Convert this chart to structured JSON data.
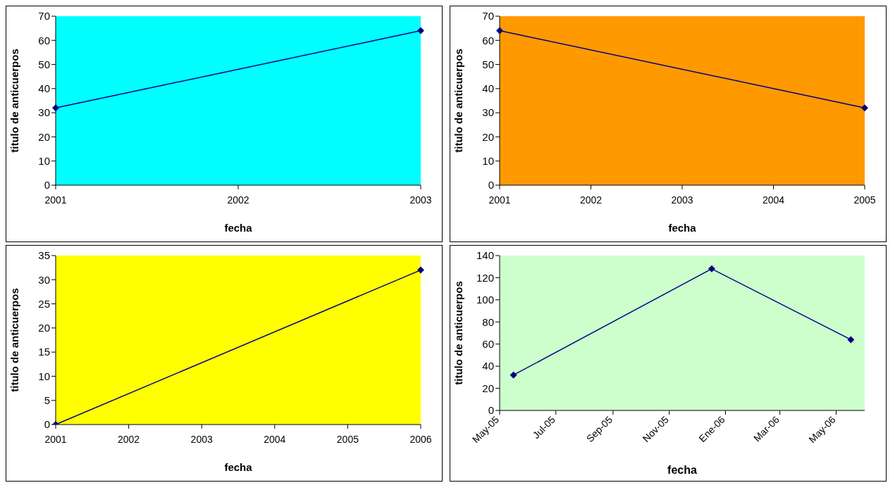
{
  "chart_data": [
    {
      "type": "line",
      "xlabel": "fecha",
      "ylabel": "titulo de anticuerpos",
      "categories": [
        "2001",
        "2002",
        "2003"
      ],
      "series": [
        {
          "color": "#000080",
          "values": [
            32,
            null,
            64
          ]
        }
      ],
      "ylim": [
        0,
        70
      ],
      "yticks": [
        0,
        10,
        20,
        30,
        40,
        50,
        60,
        70
      ],
      "marker": "diamond",
      "line_style": "solid"
    },
    {
      "type": "line",
      "xlabel": "fecha",
      "ylabel": "titulo de anticuerpos",
      "categories": [
        "2001",
        "2002",
        "2003",
        "2004",
        "2005"
      ],
      "series": [
        {
          "color": "#000080",
          "values": [
            64,
            null,
            null,
            null,
            32
          ]
        }
      ],
      "ylim": [
        0,
        70
      ],
      "yticks": [
        0,
        10,
        20,
        30,
        40,
        50,
        60,
        70
      ],
      "marker": "diamond",
      "line_style": "solid"
    },
    {
      "type": "line",
      "xlabel": "fecha",
      "ylabel": "titulo de anticuerpos",
      "categories": [
        "2001",
        "2002",
        "2003",
        "2004",
        "2005",
        "2006"
      ],
      "series": [
        {
          "color": "#000080",
          "values": [
            0,
            null,
            null,
            null,
            null,
            32
          ]
        }
      ],
      "ylim": [
        0,
        35
      ],
      "yticks": [
        0,
        5,
        10,
        15,
        20,
        25,
        30,
        35
      ],
      "marker": "diamond",
      "line_style": "solid"
    },
    {
      "type": "line",
      "xlabel": "fecha",
      "ylabel": "titulo de anticuerpos",
      "x": [
        "2005-05-16",
        "2005-12-17",
        "2006-05-17"
      ],
      "series": [
        {
          "color": "#000080",
          "values": [
            32,
            128,
            64
          ]
        }
      ],
      "xlim": [
        "2005-05-01",
        "2006-06-01"
      ],
      "xticks": [
        {
          "value": "2005-05-01",
          "label": "May-05"
        },
        {
          "value": "2005-07-01",
          "label": "Jul-05"
        },
        {
          "value": "2005-09-01",
          "label": "Sep-05"
        },
        {
          "value": "2005-11-01",
          "label": "Nov-05"
        },
        {
          "value": "2006-01-01",
          "label": "Ene-06"
        },
        {
          "value": "2006-03-01",
          "label": "Mar-06"
        },
        {
          "value": "2006-05-01",
          "label": "May-06"
        }
      ],
      "ylim": [
        0,
        140
      ],
      "yticks": [
        0,
        20,
        40,
        60,
        80,
        100,
        120,
        140
      ],
      "marker": "diamond",
      "line_style": "solid"
    }
  ]
}
